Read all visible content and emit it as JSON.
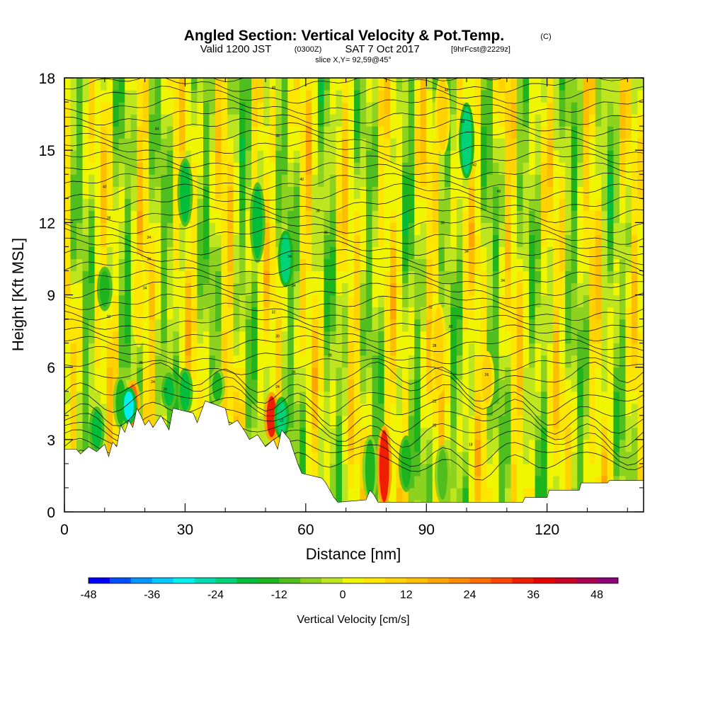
{
  "chart_data": {
    "type": "heatmap",
    "title": "Angled Section: Vertical Velocity & Pot.Temp.",
    "title_unit": "(C)",
    "subtitle_main": "Valid 1200 JST",
    "subtitle_utc": "(0300Z)",
    "subtitle_date": "SAT 7 Oct 2017",
    "subtitle_fcst": "[9hrFcst@2229z]",
    "slice_label": "slice X,Y= 92,59@45°",
    "xlabel": "Distance [nm]",
    "ylabel": "Height [Kft MSL]",
    "xlim": [
      0,
      144
    ],
    "ylim": [
      0,
      18
    ],
    "xticks": [
      0,
      30,
      60,
      90,
      120
    ],
    "yticks": [
      0,
      3,
      6,
      9,
      12,
      15,
      18
    ],
    "terrain_kft": [
      [
        0,
        2.6
      ],
      [
        3,
        2.6
      ],
      [
        4,
        2.4
      ],
      [
        6,
        2.7
      ],
      [
        8,
        2.5
      ],
      [
        10,
        2.8
      ],
      [
        11,
        2.3
      ],
      [
        12,
        2.9
      ],
      [
        13,
        2.7
      ],
      [
        14,
        3.6
      ],
      [
        15,
        3.3
      ],
      [
        16,
        3.8
      ],
      [
        17,
        3.5
      ],
      [
        18,
        4.3
      ],
      [
        19,
        4.0
      ],
      [
        20,
        3.6
      ],
      [
        21,
        3.8
      ],
      [
        22,
        3.5
      ],
      [
        24,
        4.0
      ],
      [
        26,
        3.4
      ],
      [
        27,
        4.3
      ],
      [
        32,
        4.1
      ],
      [
        33,
        3.7
      ],
      [
        35,
        4.6
      ],
      [
        40,
        4.3
      ],
      [
        41,
        3.6
      ],
      [
        43,
        3.8
      ],
      [
        45,
        3.3
      ],
      [
        46,
        3.0
      ],
      [
        48,
        3.2
      ],
      [
        50,
        2.7
      ],
      [
        52,
        3.0
      ],
      [
        53,
        2.6
      ],
      [
        54,
        3.4
      ],
      [
        56,
        3.0
      ],
      [
        57,
        2.5
      ],
      [
        58,
        2.0
      ],
      [
        59,
        1.6
      ],
      [
        64,
        1.4
      ],
      [
        65,
        1.2
      ],
      [
        66,
        0.9
      ],
      [
        67,
        0.6
      ],
      [
        68,
        0.4
      ],
      [
        75,
        0.5
      ],
      [
        76,
        0.9
      ],
      [
        77,
        0.7
      ],
      [
        78,
        0.4
      ],
      [
        114,
        0.4
      ],
      [
        114.5,
        0.6
      ],
      [
        120,
        0.6
      ],
      [
        120.5,
        0.9
      ],
      [
        128,
        0.9
      ],
      [
        128.5,
        1.2
      ],
      [
        135,
        1.2
      ],
      [
        135.5,
        1.3
      ],
      [
        144,
        1.3
      ]
    ],
    "isentrope_labels": [
      {
        "x": 52,
        "y": 17.6,
        "text": "48"
      },
      {
        "x": 95,
        "y": 17.5,
        "text": "48"
      },
      {
        "x": 23,
        "y": 15.9,
        "text": "44"
      },
      {
        "x": 53,
        "y": 15.6,
        "text": "44"
      },
      {
        "x": 99,
        "y": 16.2,
        "text": "44"
      },
      {
        "x": 102,
        "y": 14.4,
        "text": "42"
      },
      {
        "x": 59,
        "y": 13.8,
        "text": "40"
      },
      {
        "x": 10,
        "y": 13.5,
        "text": "40"
      },
      {
        "x": 108,
        "y": 13.3,
        "text": "40"
      },
      {
        "x": 63,
        "y": 12.5,
        "text": "38"
      },
      {
        "x": 11,
        "y": 12.2,
        "text": "38"
      },
      {
        "x": 94,
        "y": 12.0,
        "text": "36"
      },
      {
        "x": 65,
        "y": 11.6,
        "text": "36"
      },
      {
        "x": 21,
        "y": 11.4,
        "text": "34"
      },
      {
        "x": 100,
        "y": 10.8,
        "text": "34"
      },
      {
        "x": 56,
        "y": 10.6,
        "text": "34"
      },
      {
        "x": 21,
        "y": 10.5,
        "text": "34"
      },
      {
        "x": 109,
        "y": 9.6,
        "text": "34"
      },
      {
        "x": 57,
        "y": 9.4,
        "text": "34"
      },
      {
        "x": 20,
        "y": 9.3,
        "text": "34"
      },
      {
        "x": 91,
        "y": 8.5,
        "text": "32"
      },
      {
        "x": 52,
        "y": 8.3,
        "text": "32"
      },
      {
        "x": 11,
        "y": 8.1,
        "text": "32"
      },
      {
        "x": 96,
        "y": 7.7,
        "text": "30"
      },
      {
        "x": 53,
        "y": 7.3,
        "text": "30"
      },
      {
        "x": 92,
        "y": 6.9,
        "text": "28"
      },
      {
        "x": 66,
        "y": 6.5,
        "text": "28"
      },
      {
        "x": 19,
        "y": 6.2,
        "text": "26"
      },
      {
        "x": 57,
        "y": 5.8,
        "text": "26"
      },
      {
        "x": 105,
        "y": 5.7,
        "text": "26"
      },
      {
        "x": 22,
        "y": 5.4,
        "text": "24"
      },
      {
        "x": 53,
        "y": 5.2,
        "text": "24"
      },
      {
        "x": 25,
        "y": 5.1,
        "text": "24"
      },
      {
        "x": 92,
        "y": 4.6,
        "text": "22"
      },
      {
        "x": 54,
        "y": 3.8,
        "text": "22"
      },
      {
        "x": 92,
        "y": 3.6,
        "text": "20"
      },
      {
        "x": 101,
        "y": 2.8,
        "text": "18"
      }
    ],
    "colorbar": {
      "title": "Vertical Velocity [cm/s]",
      "min": -48,
      "max": 52,
      "step": 4,
      "tick_values": [
        "-48",
        "-36",
        "-24",
        "-12",
        "0",
        "12",
        "24",
        "36",
        "48"
      ],
      "colors": [
        "#0000ff",
        "#0050ff",
        "#0096ff",
        "#00c8ff",
        "#00f0f0",
        "#00dcb4",
        "#00d278",
        "#00be3c",
        "#1eb41e",
        "#50be1e",
        "#8cd21e",
        "#bee61e",
        "#f0f500",
        "#ffe600",
        "#ffd200",
        "#ffbe00",
        "#ffa500",
        "#ff8c00",
        "#ff6e00",
        "#ff4600",
        "#f01e00",
        "#e60000",
        "#c80028",
        "#aa0050",
        "#8c0078"
      ]
    },
    "features": [
      {
        "x": 18.5,
        "y0": 7.0,
        "y1": 10.5,
        "w": 6
      },
      {
        "x": 14,
        "y0": 3.6,
        "y1": 5.5,
        "w": -14
      },
      {
        "x": 17,
        "y0": 3.6,
        "y1": 5.3,
        "w": 26
      },
      {
        "x": 16,
        "y0": 3.8,
        "y1": 5.0,
        "w": -30
      },
      {
        "x": 51.5,
        "y0": 3.1,
        "y1": 4.8,
        "w": 32
      },
      {
        "x": 54,
        "y0": 3.2,
        "y1": 4.6,
        "w": -22
      },
      {
        "x": 79.5,
        "y0": 0.4,
        "y1": 3.4,
        "w": 34
      },
      {
        "x": 76,
        "y0": 0.6,
        "y1": 3.0,
        "w": -14
      },
      {
        "x": 8,
        "y0": 2.6,
        "y1": 4.2,
        "w": -20
      },
      {
        "x": 10,
        "y0": 8.5,
        "y1": 10.0,
        "w": -16
      },
      {
        "x": 100,
        "y0": 14.0,
        "y1": 16.8,
        "w": -22
      },
      {
        "x": 94,
        "y0": 15.0,
        "y1": 18.0,
        "w": 8
      },
      {
        "x": 26,
        "y0": 4.4,
        "y1": 5.6,
        "w": -18
      },
      {
        "x": 30,
        "y0": 4.2,
        "y1": 5.8,
        "w": -20
      },
      {
        "x": 38,
        "y0": 4.6,
        "y1": 5.8,
        "w": -14
      },
      {
        "x": 93,
        "y0": 5.0,
        "y1": 8.5,
        "w": 8
      },
      {
        "x": 105,
        "y0": 4.5,
        "y1": 6.5,
        "w": 10
      },
      {
        "x": 48,
        "y0": 10.5,
        "y1": 13.5,
        "w": -18
      },
      {
        "x": 55,
        "y0": 9.5,
        "y1": 11.5,
        "w": -22
      },
      {
        "x": 30,
        "y0": 12.0,
        "y1": 14.5,
        "w": -18
      },
      {
        "x": 85,
        "y0": 1.0,
        "y1": 3.0,
        "w": -16
      },
      {
        "x": 94,
        "y0": 0.5,
        "y1": 2.6,
        "w": -12
      }
    ]
  }
}
